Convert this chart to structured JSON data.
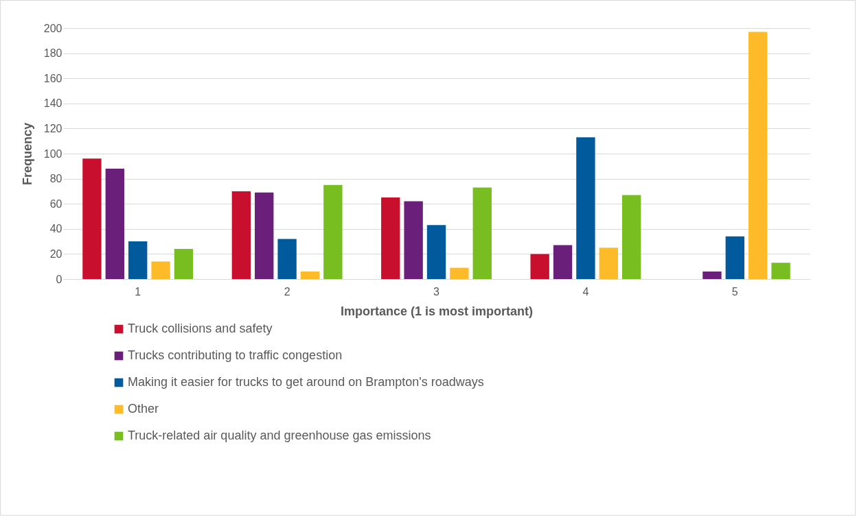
{
  "chart_data": {
    "type": "bar",
    "xlabel": "Importance (1 is most important)",
    "ylabel": "Frequency",
    "categories": [
      "1",
      "2",
      "3",
      "4",
      "5"
    ],
    "series": [
      {
        "name": "Truck collisions and safety",
        "color": "#c8102e",
        "values": [
          96,
          70,
          65,
          20,
          0
        ]
      },
      {
        "name": "Trucks contributing to traffic congestion",
        "color": "#6a1f7a",
        "values": [
          88,
          69,
          62,
          27,
          6
        ]
      },
      {
        "name": "Making it easier for trucks to get around on Brampton's roadways",
        "color": "#005a9c",
        "values": [
          30,
          32,
          43,
          113,
          34
        ]
      },
      {
        "name": "Other",
        "color": "#fdbb2a",
        "values": [
          14,
          6,
          9,
          25,
          197
        ]
      },
      {
        "name": "Truck-related air quality and greenhouse gas emissions",
        "color": "#78be20",
        "values": [
          24,
          75,
          73,
          67,
          13
        ]
      }
    ],
    "ylim": [
      0,
      200
    ],
    "yticks": [
      0,
      20,
      40,
      60,
      80,
      100,
      120,
      140,
      160,
      180,
      200
    ],
    "grid": "y",
    "legend": "bottom"
  }
}
